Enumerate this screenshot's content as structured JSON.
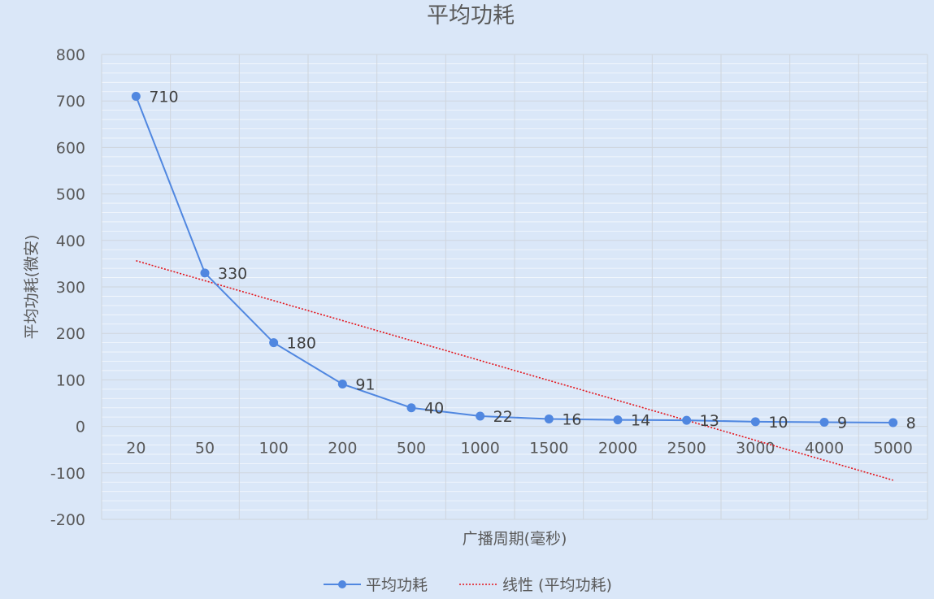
{
  "chart_data": {
    "type": "line",
    "title": "平均功耗",
    "xlabel": "广播周期(毫秒)",
    "ylabel": "平均功耗(微安)",
    "categories": [
      "20",
      "50",
      "100",
      "200",
      "500",
      "1000",
      "1500",
      "2000",
      "2500",
      "3000",
      "4000",
      "5000"
    ],
    "series": [
      {
        "name": "平均功耗",
        "values": [
          710,
          330,
          180,
          91,
          40,
          22,
          16,
          14,
          13,
          10,
          9,
          8
        ],
        "color": "#5087e0",
        "data_labels": true
      }
    ],
    "trendline": {
      "name": "线性 (平均功耗)",
      "type": "linear",
      "of_series": "平均功耗",
      "color": "#e3141b",
      "style": "dotted"
    },
    "ylim": [
      -200,
      800
    ],
    "yticks": [
      -200,
      -100,
      0,
      100,
      200,
      300,
      400,
      500,
      600,
      700,
      800
    ],
    "grid": true,
    "minor_grid": true,
    "legend_position": "bottom",
    "background": "#dae7f8"
  }
}
